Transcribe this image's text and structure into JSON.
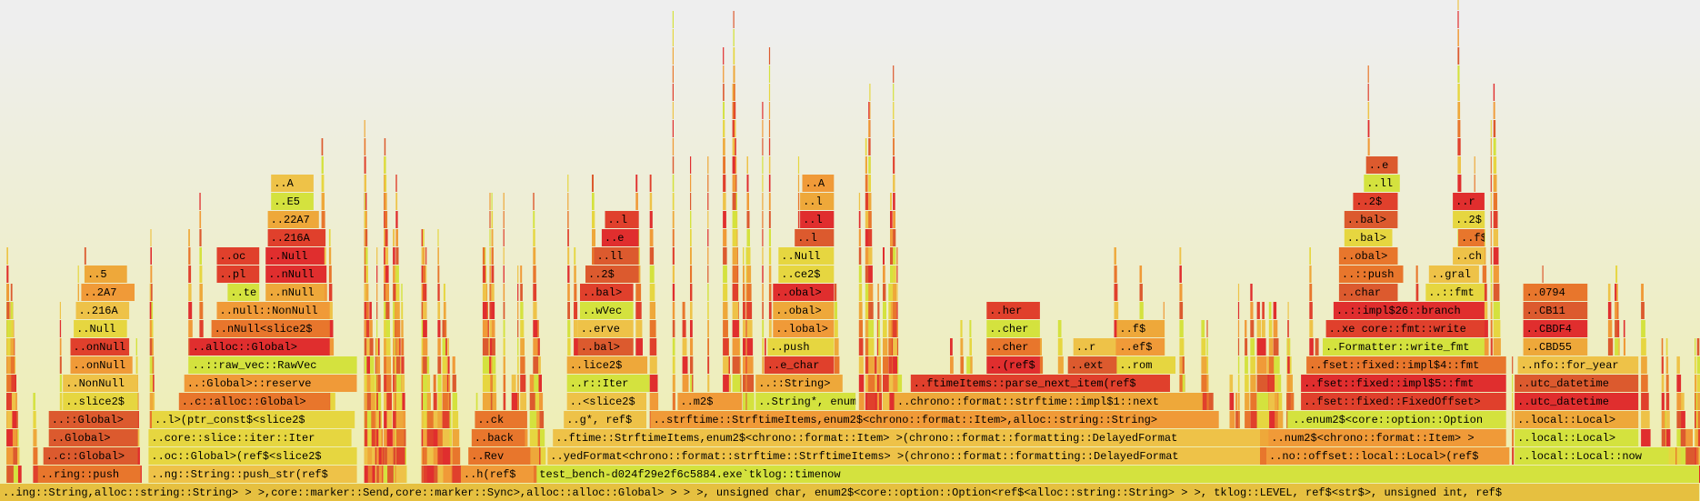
{
  "frames": [
    {
      "label": "..ing::String,alloc::string::String> > >,core::marker::Send,core::marker::Sync>,alloc::alloc::Global> > > >, unsigned char, enum2$<core::option::Option<ref$<alloc::string::String> > >, tklog::LEVEL, ref$<str$>, unsigned int, ref$"
    },
    {
      "label": "..ring::push"
    },
    {
      "label": "..ng::String::push_str(ref$"
    },
    {
      "label": "..h(ref$"
    },
    {
      "label": "test_bench-d024f29e2f6c5884.exe`tklog::timenow"
    },
    {
      "label": "..c::Global>"
    },
    {
      "label": "..oc::Global>(ref$<slice2$"
    },
    {
      "label": "..Rev"
    },
    {
      "label": "..yedFormat<chrono::format::strftime::StrftimeItems> >(chrono::format::formatting::DelayedFormat"
    },
    {
      "label": "..no::offset::local::Local>(ref$"
    },
    {
      "label": "..local::Local::now"
    },
    {
      "label": "..Global>"
    },
    {
      "label": "..core::slice::iter::Iter"
    },
    {
      "label": "..back"
    },
    {
      "label": "..ftime::StrftimeItems,enum2$<chrono::format::Item> >(chrono::format::formatting::DelayedFormat"
    },
    {
      "label": "..num2$<chrono::format::Item> >"
    },
    {
      "label": "..local::Local>"
    },
    {
      "label": "..::Global>"
    },
    {
      "label": "..l>(ptr_const$<slice2$"
    },
    {
      "label": "..ck"
    },
    {
      "label": "..g*, ref$"
    },
    {
      "label": "..strftime::StrftimeItems,enum2$<chrono::format::Item>,alloc::string::String>"
    },
    {
      "label": "..enum2$<core::option::Option"
    },
    {
      "label": "..local::Local>"
    },
    {
      "label": "..slice2$"
    },
    {
      "label": "..c::alloc::Global>"
    },
    {
      "label": "..<slice2$"
    },
    {
      "label": "..m2$"
    },
    {
      "label": "..String*, enum2$"
    },
    {
      "label": "..chrono::format::strftime::impl$1::next"
    },
    {
      "label": "..fset::fixed::FixedOffset>"
    },
    {
      "label": "..utc_datetime"
    },
    {
      "label": "..NonNull"
    },
    {
      "label": "..:Global>::reserve"
    },
    {
      "label": "..r::Iter"
    },
    {
      "label": "..::String>"
    },
    {
      "label": "..ftimeItems::parse_next_item(ref$"
    },
    {
      "label": "..fset::fixed::impl$5::fmt"
    },
    {
      "label": "..utc_datetime"
    },
    {
      "label": "..onNull"
    },
    {
      "label": "..::raw_vec::RawVec"
    },
    {
      "label": "..lice2$"
    },
    {
      "label": "..e_char"
    },
    {
      "label": "..(ref$"
    },
    {
      "label": "..ext"
    },
    {
      "label": "..rom"
    },
    {
      "label": "..fset::fixed::impl$4::fmt"
    },
    {
      "label": "..nfo::for_year"
    },
    {
      "label": "..onNull"
    },
    {
      "label": "..alloc::Global>"
    },
    {
      "label": "..bal>"
    },
    {
      "label": "..push"
    },
    {
      "label": "..cher"
    },
    {
      "label": "..r"
    },
    {
      "label": "..ef$"
    },
    {
      "label": "..Formatter::write_fmt"
    },
    {
      "label": "..CBD55"
    },
    {
      "label": "..Null"
    },
    {
      "label": "..nNull<slice2$"
    },
    {
      "label": "..erve"
    },
    {
      "label": "..lobal>"
    },
    {
      "label": "..cher"
    },
    {
      "label": "..f$"
    },
    {
      "label": "..xe core::fmt::write"
    },
    {
      "label": "..CBDF4"
    },
    {
      "label": "..216A"
    },
    {
      "label": "..null::NonNull"
    },
    {
      "label": "..wVec"
    },
    {
      "label": "..obal>"
    },
    {
      "label": "..her"
    },
    {
      "label": "..::impl$26::branch"
    },
    {
      "label": "..CB11"
    },
    {
      "label": "..2A7"
    },
    {
      "label": "..te"
    },
    {
      "label": "..nNull"
    },
    {
      "label": "..bal>"
    },
    {
      "label": "..obal>"
    },
    {
      "label": "..char"
    },
    {
      "label": "..::fmt"
    },
    {
      "label": "..0794"
    },
    {
      "label": "..5"
    },
    {
      "label": "..pl"
    },
    {
      "label": "..nNull"
    },
    {
      "label": "..2$"
    },
    {
      "label": "..ce2$"
    },
    {
      "label": "..::push"
    },
    {
      "label": "..gral"
    },
    {
      "label": "..oc"
    },
    {
      "label": "..Null"
    },
    {
      "label": "..ll"
    },
    {
      "label": "..Null"
    },
    {
      "label": "..obal>"
    },
    {
      "label": "..ch"
    },
    {
      "label": "..216A"
    },
    {
      "label": "..e"
    },
    {
      "label": "..l"
    },
    {
      "label": "..bal>"
    },
    {
      "label": "..f$"
    },
    {
      "label": "..22A7"
    },
    {
      "label": "..l"
    },
    {
      "label": "..l"
    },
    {
      "label": "..bal>"
    },
    {
      "label": "..2$"
    },
    {
      "label": "..E5"
    },
    {
      "label": "..l"
    },
    {
      "label": "..2$"
    },
    {
      "label": "..r"
    },
    {
      "label": "..A"
    },
    {
      "label": "..A"
    },
    {
      "label": "..ll"
    },
    {
      "label": "..e"
    }
  ]
}
